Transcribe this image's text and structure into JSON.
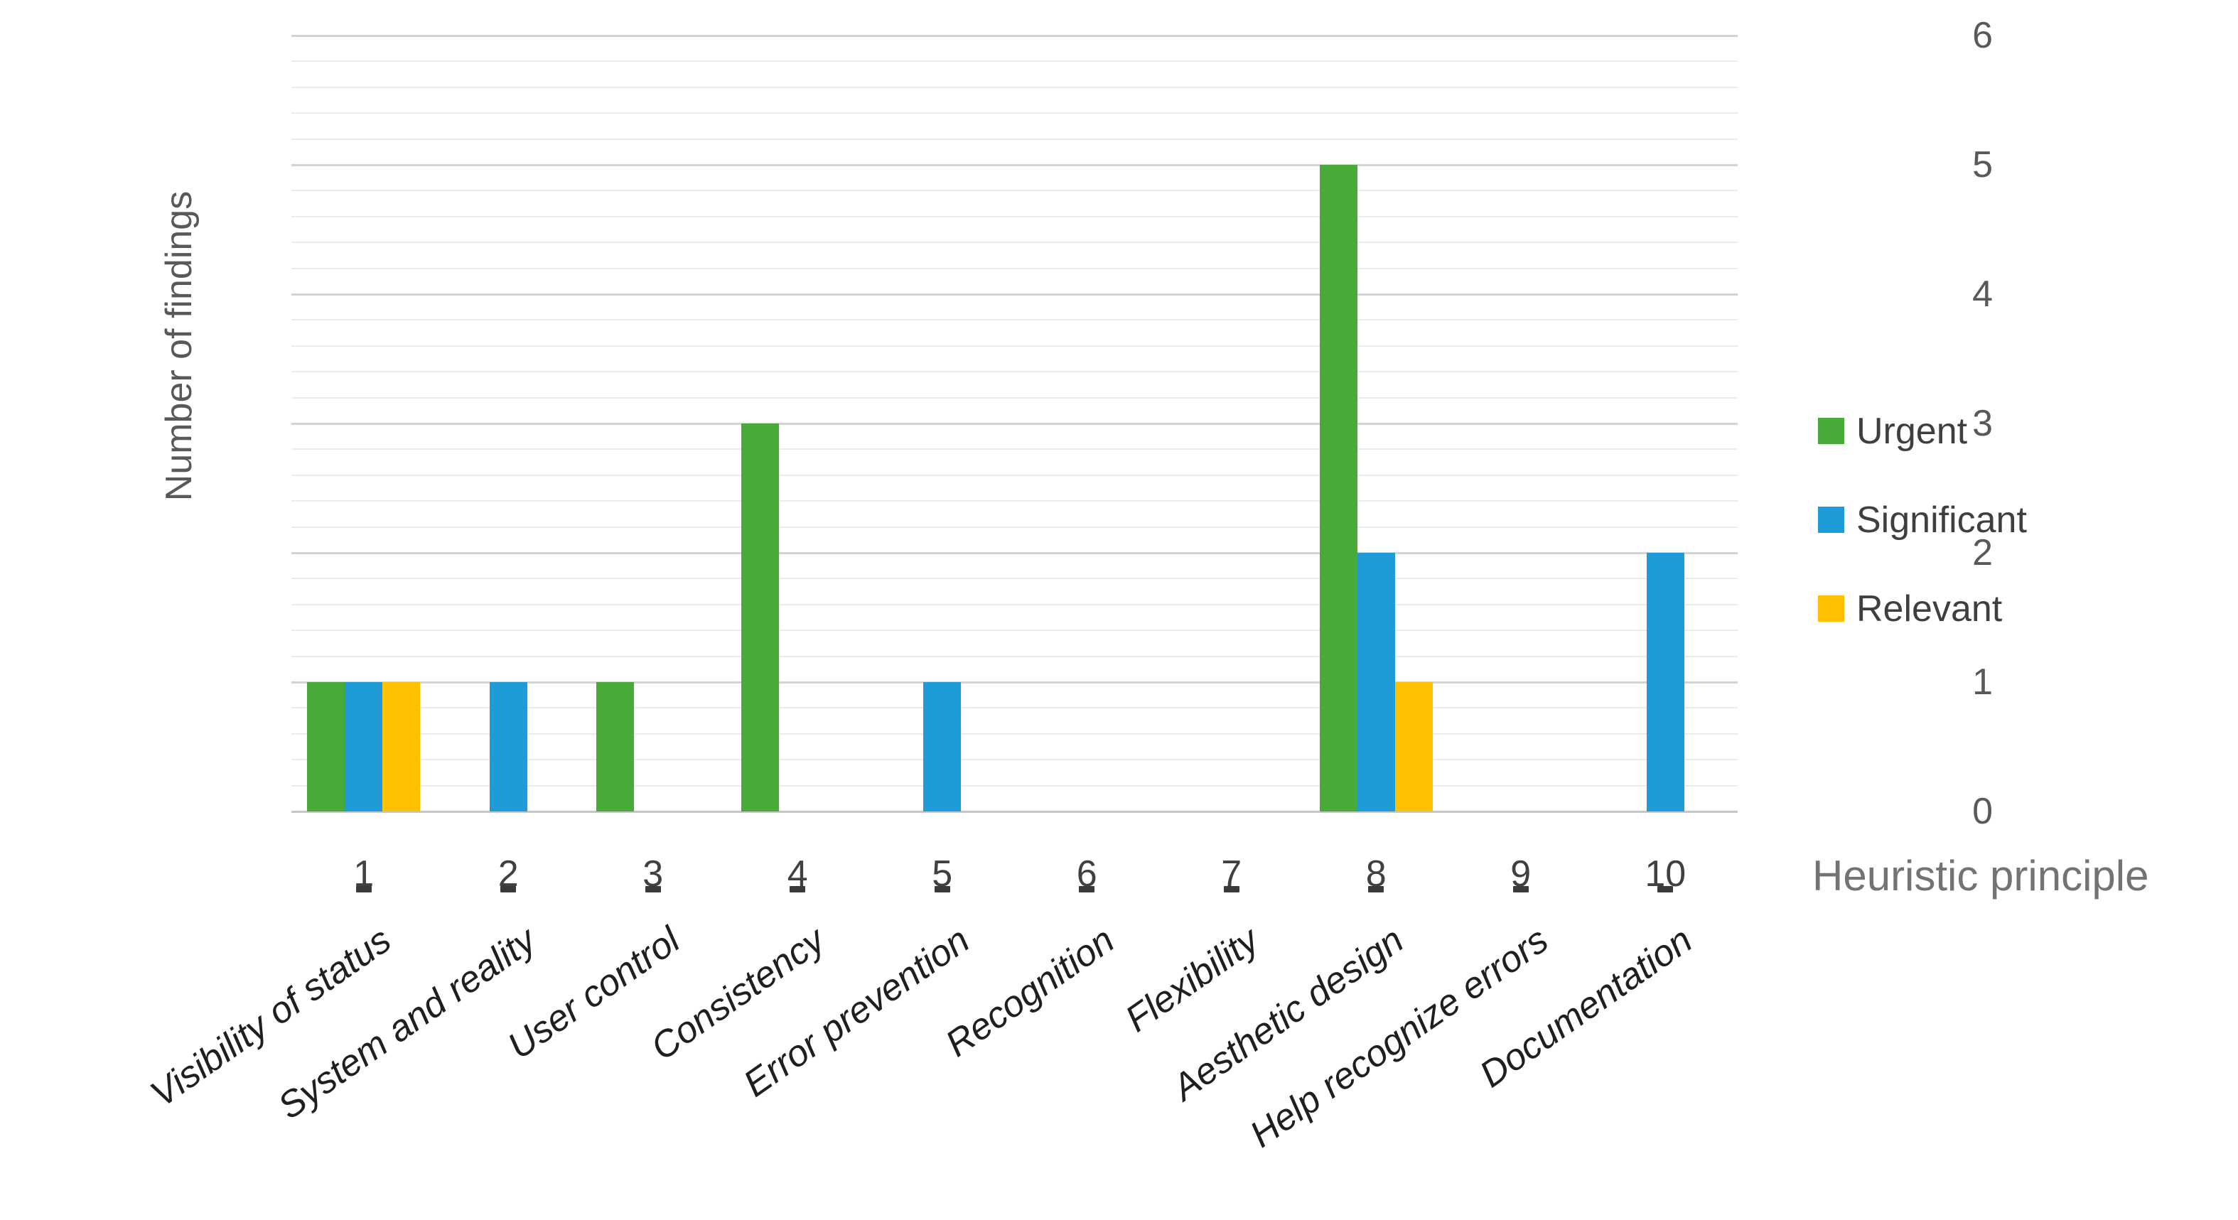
{
  "chart_data": {
    "type": "bar",
    "title": "",
    "xlabel": "Heuristic principle",
    "ylabel": "Number of findings",
    "ylim": [
      0,
      6
    ],
    "y_major_step": 1,
    "y_minor_step": 0.2,
    "grid": "major and minor horizontal gridlines",
    "legend_position": "right",
    "y_ticks": [
      "0",
      "1",
      "2",
      "3",
      "4",
      "5",
      "6"
    ],
    "categories": [
      {
        "number": "1",
        "label": "Visibility of status"
      },
      {
        "number": "2",
        "label": "System and reality"
      },
      {
        "number": "3",
        "label": "User control"
      },
      {
        "number": "4",
        "label": "Consistency"
      },
      {
        "number": "5",
        "label": "Error prevention"
      },
      {
        "number": "6",
        "label": "Recognition"
      },
      {
        "number": "7",
        "label": "Flexibility"
      },
      {
        "number": "8",
        "label": "Aesthetic design"
      },
      {
        "number": "9",
        "label": "Help recognize errors"
      },
      {
        "number": "10",
        "label": "Documentation"
      }
    ],
    "series": [
      {
        "name": "Urgent",
        "color": "#49ab37",
        "values": [
          1,
          0,
          1,
          3,
          0,
          0,
          0,
          5,
          0,
          0
        ]
      },
      {
        "name": "Significant",
        "color": "#1f9cd8",
        "values": [
          1,
          1,
          0,
          0,
          1,
          0,
          0,
          2,
          0,
          2
        ]
      },
      {
        "name": "Relevant",
        "color": "#ffc000",
        "values": [
          1,
          0,
          0,
          0,
          0,
          0,
          0,
          1,
          0,
          0
        ]
      }
    ]
  }
}
